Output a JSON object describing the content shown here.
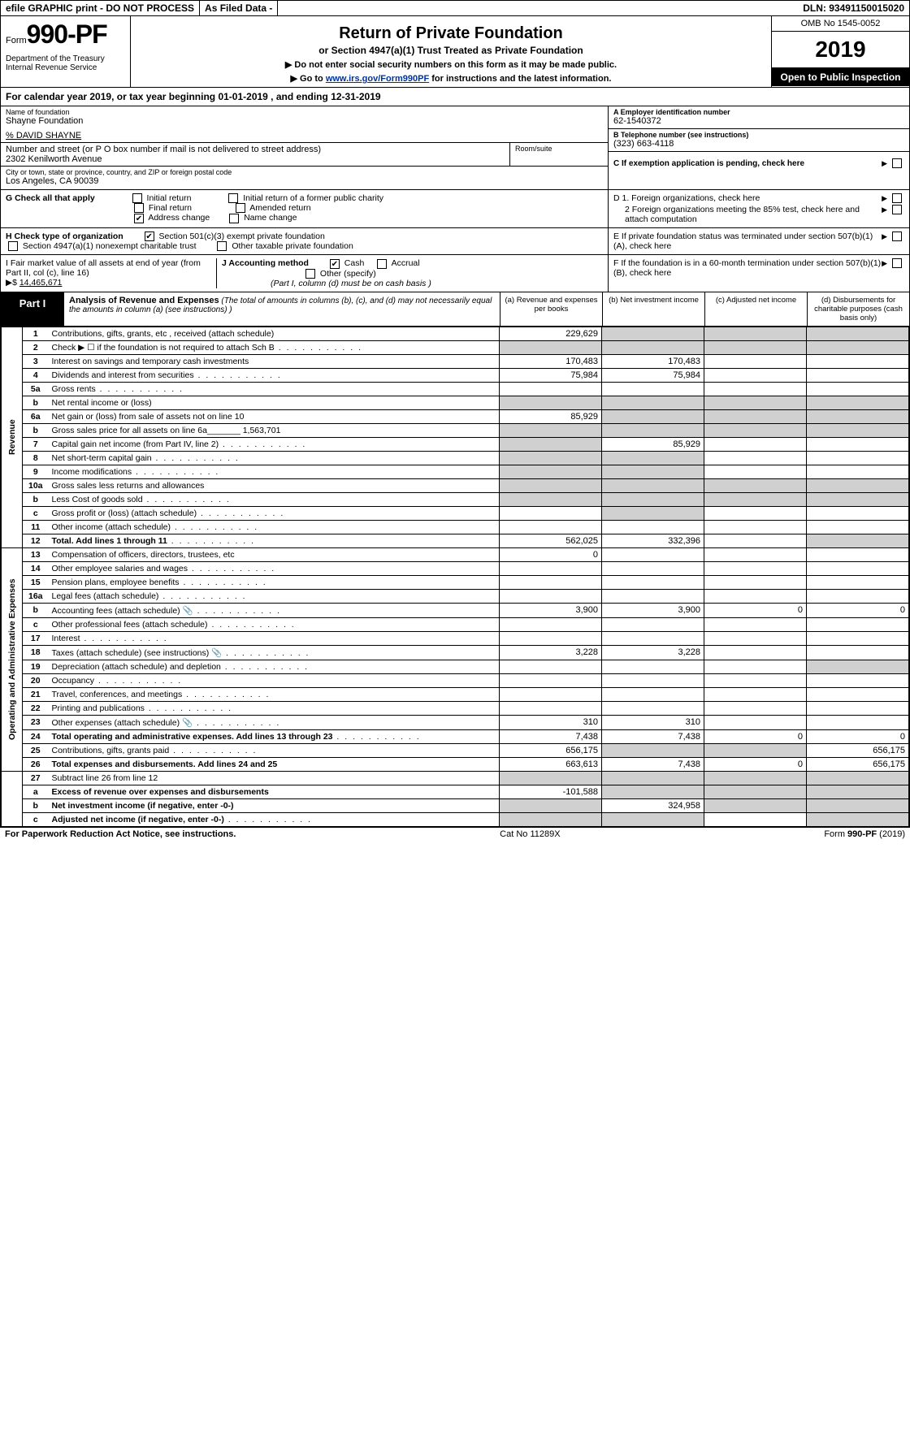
{
  "topbar": {
    "efile": "efile GRAPHIC print - DO NOT PROCESS",
    "asfiled": "As Filed Data -",
    "dln_label": "DLN:",
    "dln": "93491150015020"
  },
  "header": {
    "form_word": "Form",
    "form_num": "990-PF",
    "dept": "Department of the Treasury",
    "irs": "Internal Revenue Service",
    "title": "Return of Private Foundation",
    "subtitle": "or Section 4947(a)(1) Trust Treated as Private Foundation",
    "instr1": "▶ Do not enter social security numbers on this form as it may be made public.",
    "instr2_pre": "▶ Go to ",
    "instr2_link": "www.irs.gov/Form990PF",
    "instr2_post": " for instructions and the latest information.",
    "omb": "OMB No 1545-0052",
    "year": "2019",
    "open": "Open to Public Inspection"
  },
  "calyear": {
    "text_pre": "For calendar year 2019, or tax year beginning ",
    "begin": "01-01-2019",
    "mid": " , and ending ",
    "end": "12-31-2019"
  },
  "entity": {
    "name_label": "Name of foundation",
    "name": "Shayne Foundation",
    "care_of": "% DAVID SHAYNE",
    "addr_label": "Number and street (or P O  box number if mail is not delivered to street address)",
    "addr": "2302 Kenilworth Avenue",
    "room_label": "Room/suite",
    "city_label": "City or town, state or province, country, and ZIP or foreign postal code",
    "city": "Los Angeles, CA  90039",
    "a_label": "A Employer identification number",
    "a_val": "62-1540372",
    "b_label": "B Telephone number (see instructions)",
    "b_val": "(323) 663-4118",
    "c_label": "C If exemption application is pending, check here"
  },
  "g": {
    "label": "G Check all that apply",
    "initial": "Initial return",
    "initial_former": "Initial return of a former public charity",
    "final": "Final return",
    "amended": "Amended return",
    "addr_change": "Address change",
    "name_change": "Name change"
  },
  "d": {
    "d1": "D 1. Foreign organizations, check here",
    "d2": "2 Foreign organizations meeting the 85% test, check here and attach computation",
    "e": "E  If private foundation status was terminated under section 507(b)(1)(A), check here"
  },
  "h": {
    "label": "H Check type of organization",
    "opt1": "Section 501(c)(3) exempt private foundation",
    "opt2": "Section 4947(a)(1) nonexempt charitable trust",
    "opt3": "Other taxable private foundation"
  },
  "i": {
    "label": "I Fair market value of all assets at end of year (from Part II, col  (c), line 16)",
    "arrow": "▶$",
    "val": "14,465,671"
  },
  "j": {
    "label": "J Accounting method",
    "cash": "Cash",
    "accrual": "Accrual",
    "other": "Other (specify)",
    "note": "(Part I, column (d) must be on cash basis )"
  },
  "f": {
    "label": "F  If the foundation is in a 60-month termination under section 507(b)(1)(B), check here"
  },
  "part1": {
    "label": "Part I",
    "title": "Analysis of Revenue and Expenses",
    "note": " (The total of amounts in columns (b), (c), and (d) may not necessarily equal the amounts in column (a) (see instructions) )",
    "col_a": "(a)   Revenue and expenses per books",
    "col_b": "(b)  Net investment income",
    "col_c": "(c)  Adjusted net income",
    "col_d": "(d)  Disbursements for charitable purposes (cash basis only)"
  },
  "sides": {
    "revenue": "Revenue",
    "expenses": "Operating and Administrative Expenses"
  },
  "rows": [
    {
      "n": "1",
      "d": "Contributions, gifts, grants, etc , received (attach schedule)",
      "a": "229,629",
      "b": "",
      "c": "",
      "dd": "",
      "shade_bcd": true
    },
    {
      "n": "2",
      "d": "Check ▶ ☐ if the foundation is not required to attach Sch B",
      "a": "",
      "b": "",
      "c": "",
      "dd": "",
      "dots": true,
      "shade_all": true
    },
    {
      "n": "3",
      "d": "Interest on savings and temporary cash investments",
      "a": "170,483",
      "b": "170,483",
      "c": "",
      "dd": ""
    },
    {
      "n": "4",
      "d": "Dividends and interest from securities",
      "a": "75,984",
      "b": "75,984",
      "c": "",
      "dd": "",
      "dots": true
    },
    {
      "n": "5a",
      "d": "Gross rents",
      "a": "",
      "b": "",
      "c": "",
      "dd": "",
      "dots": true
    },
    {
      "n": "b",
      "d": "Net rental income or (loss)",
      "a": "",
      "b": "",
      "c": "",
      "dd": "",
      "shade_all": true
    },
    {
      "n": "6a",
      "d": "Net gain or (loss) from sale of assets not on line 10",
      "a": "85,929",
      "b": "",
      "c": "",
      "dd": "",
      "shade_bcd": true
    },
    {
      "n": "b",
      "d": "Gross sales price for all assets on line 6a_______ 1,563,701",
      "a": "",
      "b": "",
      "c": "",
      "dd": "",
      "shade_all": true
    },
    {
      "n": "7",
      "d": "Capital gain net income (from Part IV, line 2)",
      "a": "",
      "b": "85,929",
      "c": "",
      "dd": "",
      "dots": true,
      "shade_a": true
    },
    {
      "n": "8",
      "d": "Net short-term capital gain",
      "a": "",
      "b": "",
      "c": "",
      "dd": "",
      "dots": true,
      "shade_ab": true
    },
    {
      "n": "9",
      "d": "Income modifications",
      "a": "",
      "b": "",
      "c": "",
      "dd": "",
      "dots": true,
      "shade_ab": true
    },
    {
      "n": "10a",
      "d": "Gross sales less returns and allowances",
      "a": "",
      "b": "",
      "c": "",
      "dd": "",
      "shade_all": true
    },
    {
      "n": "b",
      "d": "Less  Cost of goods sold",
      "a": "",
      "b": "",
      "c": "",
      "dd": "",
      "dots": true,
      "shade_all": true
    },
    {
      "n": "c",
      "d": "Gross profit or (loss) (attach schedule)",
      "a": "",
      "b": "",
      "c": "",
      "dd": "",
      "dots": true,
      "shade_b": true
    },
    {
      "n": "11",
      "d": "Other income (attach schedule)",
      "a": "",
      "b": "",
      "c": "",
      "dd": "",
      "dots": true
    },
    {
      "n": "12",
      "d": "Total. Add lines 1 through 11",
      "a": "562,025",
      "b": "332,396",
      "c": "",
      "dd": "",
      "dots": true,
      "bold": true,
      "shade_d": true
    }
  ],
  "exp_rows": [
    {
      "n": "13",
      "d": "Compensation of officers, directors, trustees, etc",
      "a": "0",
      "b": "",
      "c": "",
      "dd": ""
    },
    {
      "n": "14",
      "d": "Other employee salaries and wages",
      "a": "",
      "b": "",
      "c": "",
      "dd": "",
      "dots": true
    },
    {
      "n": "15",
      "d": "Pension plans, employee benefits",
      "a": "",
      "b": "",
      "c": "",
      "dd": "",
      "dots": true
    },
    {
      "n": "16a",
      "d": "Legal fees (attach schedule)",
      "a": "",
      "b": "",
      "c": "",
      "dd": "",
      "dots": true
    },
    {
      "n": "b",
      "d": "Accounting fees (attach schedule)",
      "a": "3,900",
      "b": "3,900",
      "c": "0",
      "dd": "0",
      "dots": true,
      "icon": true
    },
    {
      "n": "c",
      "d": "Other professional fees (attach schedule)",
      "a": "",
      "b": "",
      "c": "",
      "dd": "",
      "dots": true
    },
    {
      "n": "17",
      "d": "Interest",
      "a": "",
      "b": "",
      "c": "",
      "dd": "",
      "dots": true
    },
    {
      "n": "18",
      "d": "Taxes (attach schedule) (see instructions)",
      "a": "3,228",
      "b": "3,228",
      "c": "",
      "dd": "",
      "dots": true,
      "icon": true
    },
    {
      "n": "19",
      "d": "Depreciation (attach schedule) and depletion",
      "a": "",
      "b": "",
      "c": "",
      "dd": "",
      "dots": true,
      "shade_d": true
    },
    {
      "n": "20",
      "d": "Occupancy",
      "a": "",
      "b": "",
      "c": "",
      "dd": "",
      "dots": true
    },
    {
      "n": "21",
      "d": "Travel, conferences, and meetings",
      "a": "",
      "b": "",
      "c": "",
      "dd": "",
      "dots": true
    },
    {
      "n": "22",
      "d": "Printing and publications",
      "a": "",
      "b": "",
      "c": "",
      "dd": "",
      "dots": true
    },
    {
      "n": "23",
      "d": "Other expenses (attach schedule)",
      "a": "310",
      "b": "310",
      "c": "",
      "dd": "",
      "dots": true,
      "icon": true
    },
    {
      "n": "24",
      "d": "Total operating and administrative expenses. Add lines 13 through 23",
      "a": "7,438",
      "b": "7,438",
      "c": "0",
      "dd": "0",
      "dots": true,
      "bold": true
    },
    {
      "n": "25",
      "d": "Contributions, gifts, grants paid",
      "a": "656,175",
      "b": "",
      "c": "",
      "dd": "656,175",
      "dots": true,
      "shade_bc": true
    },
    {
      "n": "26",
      "d": "Total expenses and disbursements. Add lines 24 and 25",
      "a": "663,613",
      "b": "7,438",
      "c": "0",
      "dd": "656,175",
      "bold": true
    }
  ],
  "net_rows": [
    {
      "n": "27",
      "d": "Subtract line 26 from line 12",
      "a": "",
      "b": "",
      "c": "",
      "dd": "",
      "shade_all": true
    },
    {
      "n": "a",
      "d": "Excess of revenue over expenses and disbursements",
      "a": "-101,588",
      "b": "",
      "c": "",
      "dd": "",
      "bold": true,
      "shade_bcd": true
    },
    {
      "n": "b",
      "d": "Net investment income (if negative, enter -0-)",
      "a": "",
      "b": "324,958",
      "c": "",
      "dd": "",
      "bold": true,
      "shade_acd": true
    },
    {
      "n": "c",
      "d": "Adjusted net income (if negative, enter -0-)",
      "a": "",
      "b": "",
      "c": "",
      "dd": "",
      "bold": true,
      "dots": true,
      "shade_abd": true
    }
  ],
  "footer": {
    "left": "For Paperwork Reduction Act Notice, see instructions.",
    "mid": "Cat  No  11289X",
    "right": "Form 990-PF (2019)"
  }
}
